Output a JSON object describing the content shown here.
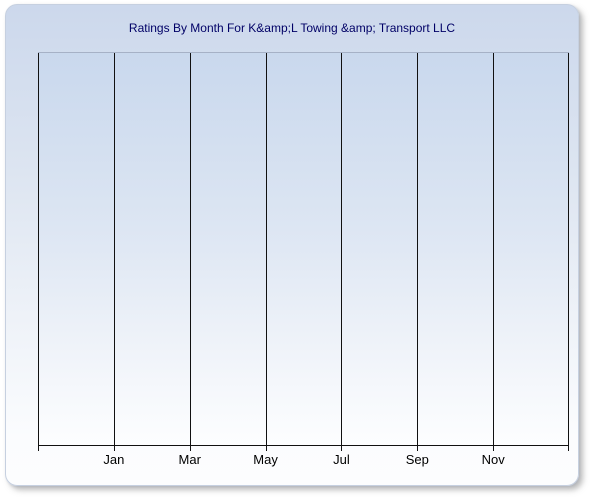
{
  "card": {
    "background_gradient_top": "#ccd8ec",
    "background_gradient_bottom": "#fcfdfe",
    "border_color": "#c6d0e0",
    "shadow_color": "#7d7d7d"
  },
  "chart_data": {
    "type": "line",
    "title": "Ratings By Month For K&amp;L Towing &amp; Transport LLC",
    "x_labels": [
      "Jan",
      "Mar",
      "May",
      "Jul",
      "Sep",
      "Nov"
    ],
    "xlabel": "",
    "ylabel": "",
    "series": [],
    "values": [],
    "note_empty_plot": "chart contains no plotted data points",
    "gridlines": "8 vertical gridlines, evenly spaced, labels centered under gridlines 2-7",
    "legend": "none",
    "colors": {
      "title_text": "#000066",
      "axis_label_text": "#000000",
      "gridline": "#111111",
      "axis_line": "#111111",
      "plot_top_border": "#a6b1c6",
      "plot_gradient_top": "#c9d8ed",
      "plot_gradient_bottom": "#fdfeff"
    }
  }
}
